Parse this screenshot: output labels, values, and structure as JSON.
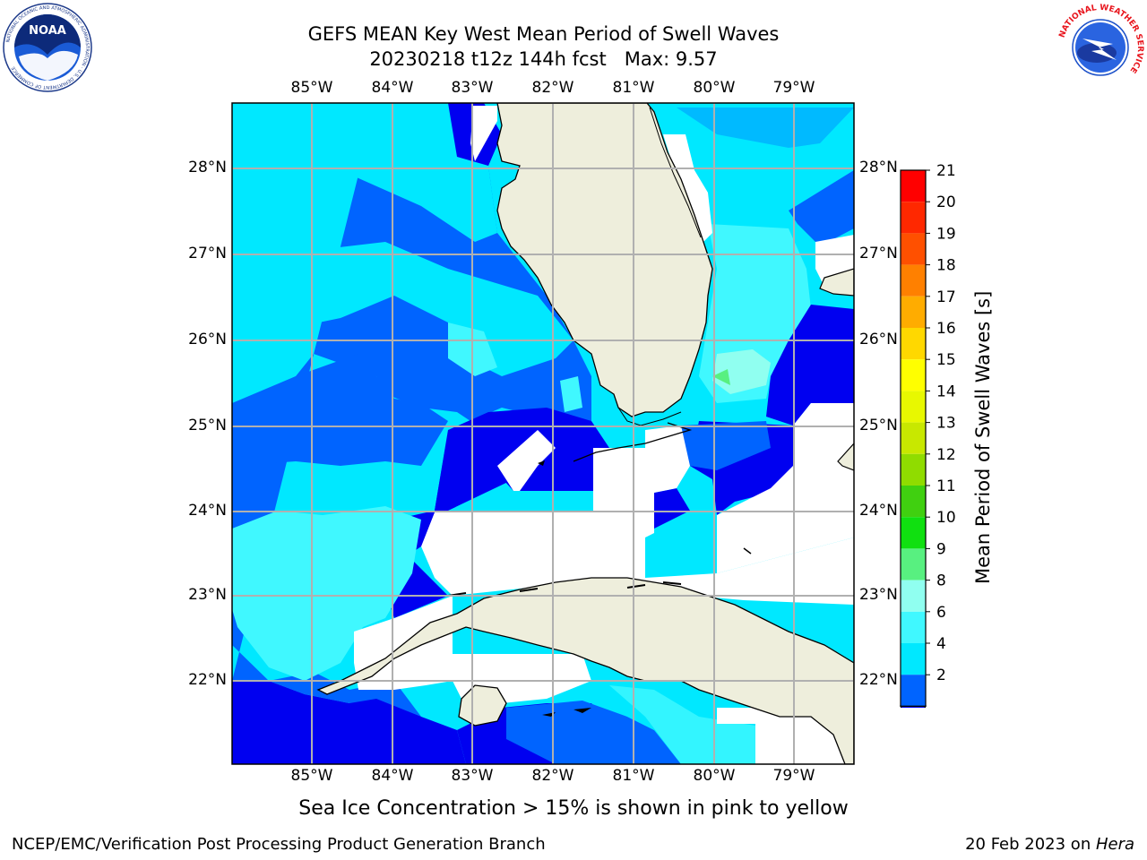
{
  "title": {
    "line1": "GEFS MEAN Key West Mean Period of Swell Waves",
    "line2": "20230218 t12z 144h fcst   Max: 9.57"
  },
  "subtitle": "Sea Ice Concentration > 15% is shown in pink to yellow",
  "footer": {
    "left": "NCEP/EMC/Verification Post Processing Product Generation Branch",
    "date": "20 Feb 2023 on ",
    "machine": "Hera"
  },
  "logos": {
    "noaa": {
      "text": "NOAA",
      "ring": "NATIONAL OCEANIC AND ATMOSPHERIC ADMINISTRATION · U.S. DEPARTMENT OF COMMERCE"
    },
    "nws": {
      "ring": "NATIONAL WEATHER SERVICE"
    }
  },
  "map": {
    "lon_labels": [
      "85°W",
      "84°W",
      "83°W",
      "82°W",
      "81°W",
      "80°W",
      "79°W"
    ],
    "lat_labels": [
      "28°N",
      "27°N",
      "26°N",
      "25°N",
      "24°N",
      "23°N",
      "22°N"
    ],
    "land_color": "#eeeedc",
    "grid_color": "#b0b0b0"
  },
  "colorbar": {
    "label": "Mean Period of Swell Waves [s]",
    "ticks": [
      "2",
      "4",
      "6",
      "8",
      "9",
      "10",
      "11",
      "12",
      "13",
      "14",
      "15",
      "16",
      "17",
      "18",
      "19",
      "20",
      "21"
    ],
    "colors": [
      "#0000f0",
      "#0064ff",
      "#00e8ff",
      "#40f8ff",
      "#90fff0",
      "#58f080",
      "#10e010",
      "#40d010",
      "#90dc00",
      "#c8e800",
      "#e8f800",
      "#ffff00",
      "#ffd800",
      "#ffac00",
      "#ff8000",
      "#ff5000",
      "#ff2800",
      "#ff0000"
    ]
  },
  "chart_data": {
    "type": "heatmap",
    "title": "GEFS MEAN Key West Mean Period of Swell Waves",
    "subtitle": "20230218 t12z 144h fcst   Max: 9.57",
    "max_value": 9.57,
    "units": "s",
    "variable": "Mean Period of Swell Waves [s]",
    "lon_range": [
      "86°W",
      "78.3°W"
    ],
    "lat_range": [
      "21.0°N",
      "28.8°N"
    ],
    "color_levels": [
      2,
      4,
      6,
      8,
      9,
      10,
      11,
      12,
      13,
      14,
      15,
      16,
      17,
      18,
      19,
      20,
      21
    ],
    "grid": true
  }
}
